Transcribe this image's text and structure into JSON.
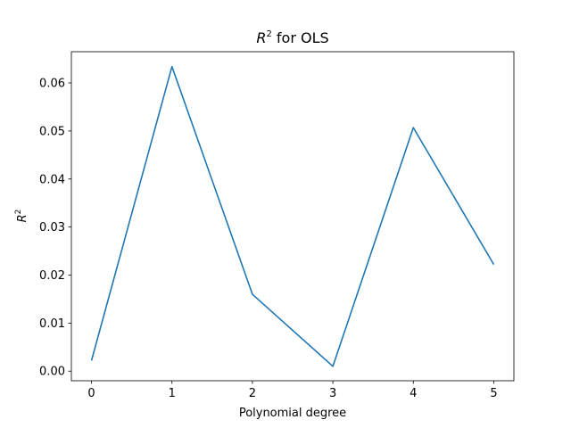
{
  "chart_data": {
    "type": "line",
    "title_var": "R",
    "title_exp": "2",
    "title_rest": " for OLS",
    "xlabel": "Polynomial degree",
    "ylabel_var": "R",
    "ylabel_exp": "2",
    "x": [
      0,
      1,
      2,
      3,
      4,
      5
    ],
    "series": [
      {
        "values": [
          0.0022,
          0.0634,
          0.016,
          0.001,
          0.0507,
          0.0222
        ],
        "color": "#1f77b4"
      }
    ],
    "xlim": [
      -0.25,
      5.25
    ],
    "ylim": [
      -0.002,
      0.0665
    ],
    "xticks": [
      "0",
      "1",
      "2",
      "3",
      "4",
      "5"
    ],
    "yticks": [
      "0.00",
      "0.01",
      "0.02",
      "0.03",
      "0.04",
      "0.05",
      "0.06"
    ],
    "grid": false,
    "legend": "none"
  }
}
